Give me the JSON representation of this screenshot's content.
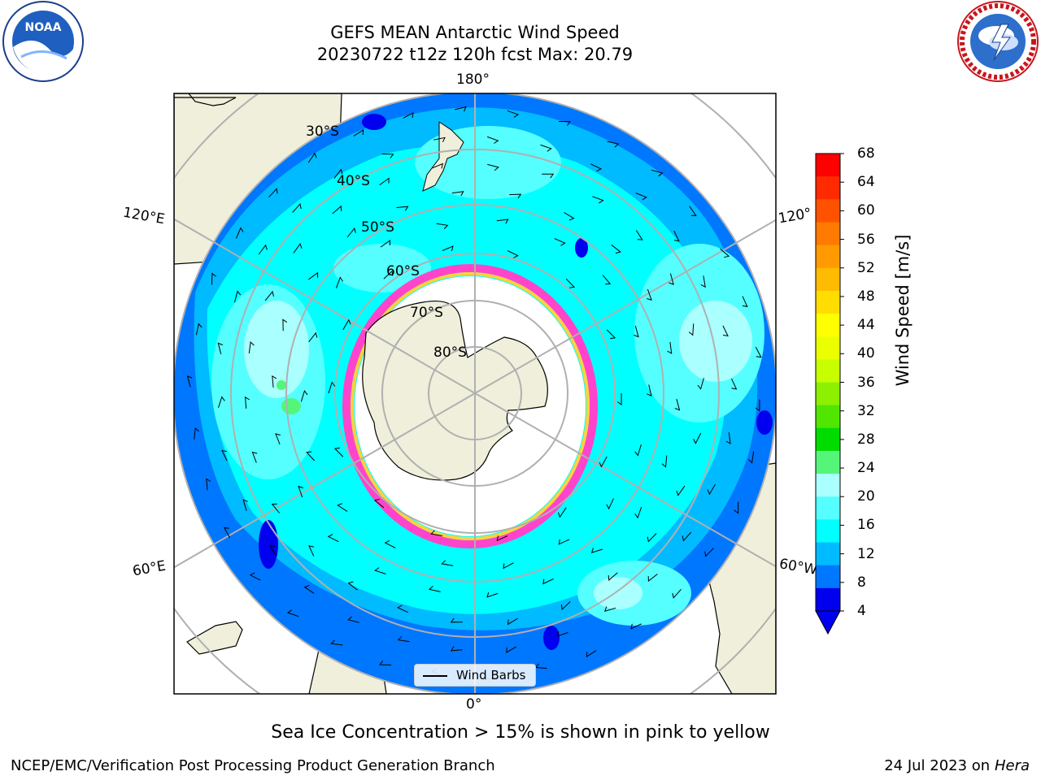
{
  "header": {
    "title_line1": "GEFS MEAN Antarctic Wind Speed",
    "title_line2": "20230722 t12z 120h fcst   Max: 20.79"
  },
  "logos": {
    "left": {
      "icon": "noaa-logo",
      "text": "NOAA"
    },
    "right": {
      "icon": "nws-logo",
      "text": "NATIONAL WEATHER SERVICE"
    }
  },
  "map": {
    "projection": "south-polar-stereographic",
    "lon_labels": {
      "top": "180°",
      "bottom": "0°",
      "upper_left": "120°E",
      "lower_left": "60°E",
      "upper_right": "120°",
      "lower_right": "60°W"
    },
    "lat_labels": [
      "30°S",
      "40°S",
      "50°S",
      "60°S",
      "70°S",
      "80°S"
    ],
    "colors": {
      "land": "#efefdb",
      "ice_free_ocean_inside_ice": "#ffffff",
      "sea_ice_edge": "#ff44cc",
      "sea_ice_edge_inner": "#ffd23c"
    }
  },
  "legend": {
    "label": "Wind Barbs"
  },
  "colorbar": {
    "label": "Wind Speed [m/s]",
    "ticks": [
      "68",
      "64",
      "60",
      "56",
      "52",
      "48",
      "44",
      "40",
      "36",
      "32",
      "28",
      "24",
      "20",
      "16",
      "12",
      "8",
      "4"
    ],
    "levels_from_top": [
      "#ff0000",
      "#ff2a00",
      "#ff5200",
      "#ff7a00",
      "#ff9a00",
      "#ffbb00",
      "#ffdd00",
      "#ffff00",
      "#ebff00",
      "#c8ff00",
      "#8cf000",
      "#50e600",
      "#00dc00",
      "#55f57a",
      "#aaffff",
      "#55ffff",
      "#00ffff",
      "#00bbff",
      "#0077ff",
      "#0000ee"
    ],
    "units": "m/s",
    "range": [
      4,
      68
    ]
  },
  "footer": {
    "ice_note": "Sea Ice Concentration > 15% is shown in pink to yellow",
    "credit": "NCEP/EMC/Verification Post Processing Product Generation Branch",
    "date": "24 Jul 2023 on",
    "host": "Hera"
  }
}
